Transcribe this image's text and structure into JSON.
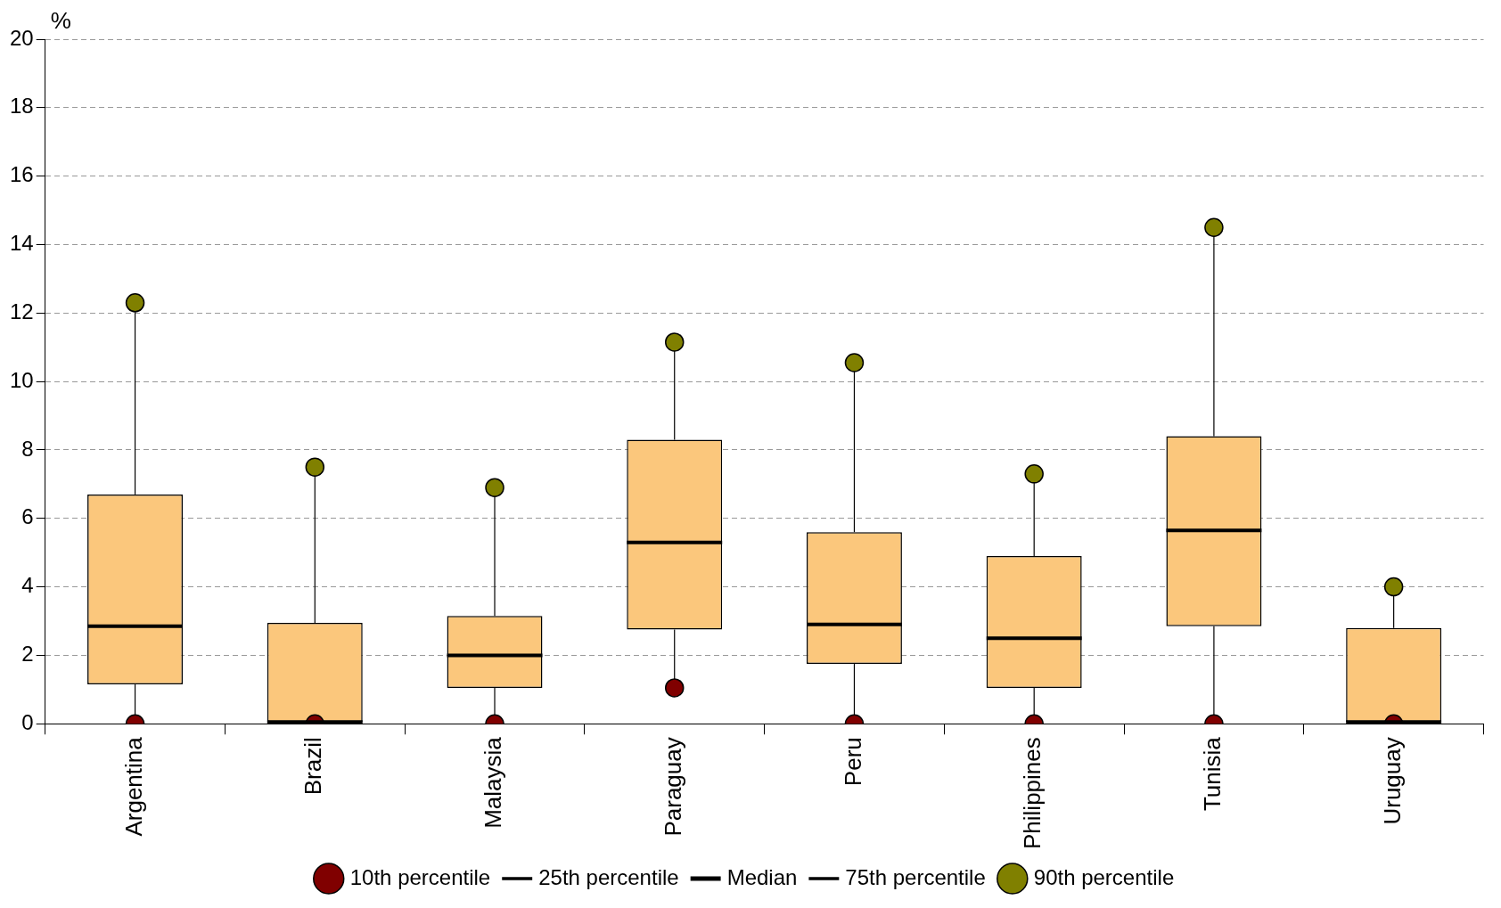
{
  "chart_data": {
    "type": "box",
    "ylabel": "%",
    "categories": [
      "Argentina",
      "Brazil",
      "Malaysia",
      "Paraguay",
      "Peru",
      "Philippines",
      "Tunisia",
      "Uruguay"
    ],
    "boxes": [
      {
        "low": 0,
        "q1": 1.15,
        "median": 2.85,
        "q3": 6.7,
        "high": 12.3
      },
      {
        "low": 0,
        "q1": 0.05,
        "median": 0.05,
        "q3": 2.95,
        "high": 7.5
      },
      {
        "low": 0,
        "q1": 1.05,
        "median": 2,
        "q3": 3.15,
        "high": 6.9
      },
      {
        "low": 1.05,
        "q1": 2.75,
        "median": 5.3,
        "q3": 8.3,
        "high": 11.15
      },
      {
        "low": 0,
        "q1": 1.75,
        "median": 2.9,
        "q3": 5.6,
        "high": 10.55
      },
      {
        "low": 0,
        "q1": 1.05,
        "median": 2.5,
        "q3": 4.9,
        "high": 7.3
      },
      {
        "low": 0,
        "q1": 2.85,
        "median": 5.65,
        "q3": 8.4,
        "high": 14.5
      },
      {
        "low": 0,
        "q1": 0.05,
        "median": 0.05,
        "q3": 2.8,
        "high": 4
      }
    ],
    "series": [
      {
        "name": "10th percentile",
        "type": "scatter",
        "color": "#800000",
        "marker": "circle",
        "values": [
          0,
          0,
          0,
          1.05,
          0,
          0,
          0,
          0
        ]
      },
      {
        "name": "25th percentile",
        "type": "scatter",
        "color": "#000000",
        "marker": "none",
        "values": [
          null,
          null,
          null,
          null,
          null,
          null,
          null,
          null
        ]
      },
      {
        "name": "Median",
        "type": "scatter",
        "color": "#000000",
        "marker": "none",
        "values": [
          null,
          null,
          null,
          null,
          null,
          null,
          null,
          null
        ]
      },
      {
        "name": "75th percentile",
        "type": "scatter",
        "color": "#000000",
        "marker": "none",
        "values": [
          null,
          null,
          null,
          null,
          null,
          null,
          null,
          null
        ]
      },
      {
        "name": "90th percentile",
        "type": "scatter",
        "color": "#808000",
        "marker": "circle",
        "values": [
          12.3,
          7.5,
          6.9,
          11.15,
          10.55,
          7.3,
          14.5,
          4
        ]
      }
    ],
    "ylim": [
      0,
      20
    ],
    "yticks": [
      0,
      2,
      4,
      6,
      8,
      10,
      12,
      14,
      16,
      18,
      20
    ],
    "grid": "y",
    "legend": "bottom"
  }
}
